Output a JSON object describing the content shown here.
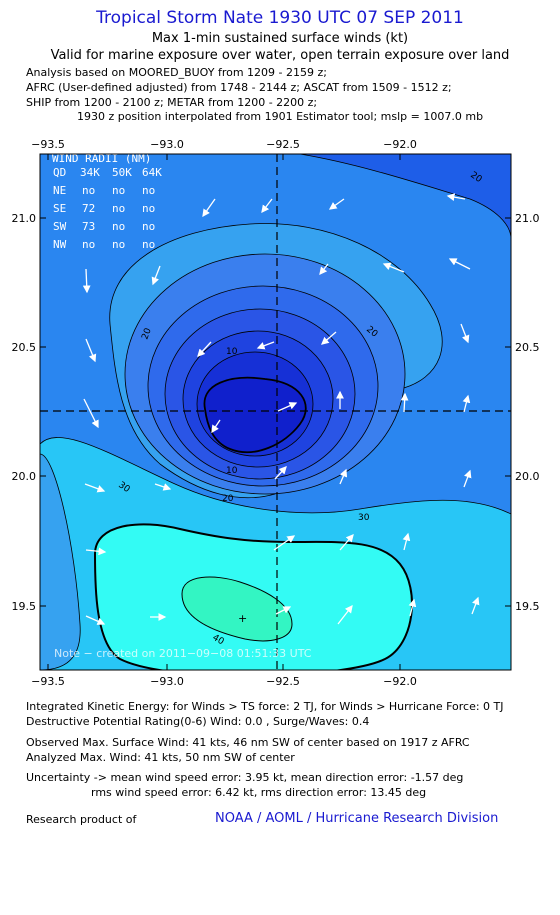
{
  "header": {
    "title": "Tropical Storm Nate 1930 UTC 07 SEP 2011",
    "subtitle1": "Max 1-min sustained surface winds (kt)",
    "subtitle2": "Valid for marine exposure over water, open terrain exposure over land"
  },
  "analysis": {
    "line1": "Analysis based on MOORED_BUOY from 1209 - 2159 z;",
    "line2": "AFRC (User-defined adjusted) from 1748 - 2144 z; ASCAT from 1509 - 1512 z;",
    "line3": "SHIP from 1200 - 2100 z; METAR from 1200 - 2200 z;",
    "interp": "1930 z position interpolated from 1901 Estimator tool; mslp = 1007.0 mb"
  },
  "map": {
    "lon_ticks": [
      "−93.5",
      "−93.0",
      "−92.5",
      "−92.0"
    ],
    "lat_ticks": [
      "21.0",
      "20.5",
      "20.0",
      "19.5"
    ],
    "contour_labels": [
      "20",
      "20",
      "20",
      "10",
      "10",
      "30",
      "30",
      "40"
    ],
    "center_lon": -92.5,
    "center_lat": 20.25,
    "wind_radii": {
      "title": "WIND RADII (NM)",
      "header": [
        "QD",
        "34K",
        "50K",
        "64K"
      ],
      "rows": [
        [
          "NE",
          "no",
          "no",
          "no"
        ],
        [
          "SE",
          "72",
          "no",
          "no"
        ],
        [
          "SW",
          "73",
          "no",
          "no"
        ],
        [
          "NW",
          "no",
          "no",
          "no"
        ]
      ]
    },
    "note": "Note − created on 2011−09−08 01:51:33 UTC",
    "colors": {
      "c0": "#1a4ce8",
      "c10": "#2f78ee",
      "c20": "#36a2f0",
      "c30": "#28c6f6",
      "c40": "#33fbf4",
      "c50": "#33f5c3",
      "c60": "#3366ee",
      "c70": "#2244dd",
      "c80": "#1122cc"
    }
  },
  "footer": {
    "ike": "Integrated Kinetic Energy:  for Winds > TS force: 2 TJ,  for Winds > Hurricane Force: 0 TJ",
    "dpr": "Destructive Potential Rating(0-6)   Wind: 0.0 , Surge/Waves: 0.4",
    "obs": "Observed Max. Surface Wind: 41 kts, 46 nm SW of center based on 1917 z AFRC",
    "ana": "Analyzed Max. Wind: 41 kts, 50 nm SW of center",
    "unc1": "Uncertainty -> mean wind speed error: 3.95 kt,   mean direction error:  -1.57 deg",
    "unc2": "rms wind speed error: 6.42 kt,   rms direction error: 13.45 deg",
    "research": "Research product of",
    "org": "NOAA / AOML / Hurricane Research Division"
  }
}
